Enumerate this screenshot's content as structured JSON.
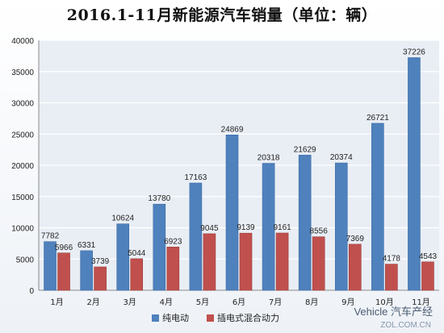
{
  "chart_data": {
    "type": "bar",
    "title": "2016.1-11月新能源汽车销量（单位：辆）",
    "categories": [
      "1月",
      "2月",
      "3月",
      "4月",
      "5月",
      "6月",
      "7月",
      "8月",
      "9月",
      "10月",
      "11月"
    ],
    "series": [
      {
        "name": "纯电动",
        "color": "#4f81bd",
        "values": [
          7782,
          6331,
          10624,
          13780,
          17163,
          24869,
          20318,
          21629,
          20374,
          26721,
          37226
        ]
      },
      {
        "name": "插电式混合动力",
        "color": "#c0504d",
        "values": [
          5966,
          3739,
          5044,
          6923,
          9045,
          9139,
          9161,
          8556,
          7369,
          4178,
          4543
        ]
      }
    ],
    "ylim": [
      0,
      40000
    ],
    "yticks": [
      0,
      5000,
      10000,
      15000,
      20000,
      25000,
      30000,
      35000,
      40000
    ],
    "grid": true,
    "legend": "bottom",
    "plot_bg": "#e9eef5"
  },
  "watermark": {
    "line1": "Vehicle 汽车产经",
    "line2": "ZOL.COM.CN"
  }
}
